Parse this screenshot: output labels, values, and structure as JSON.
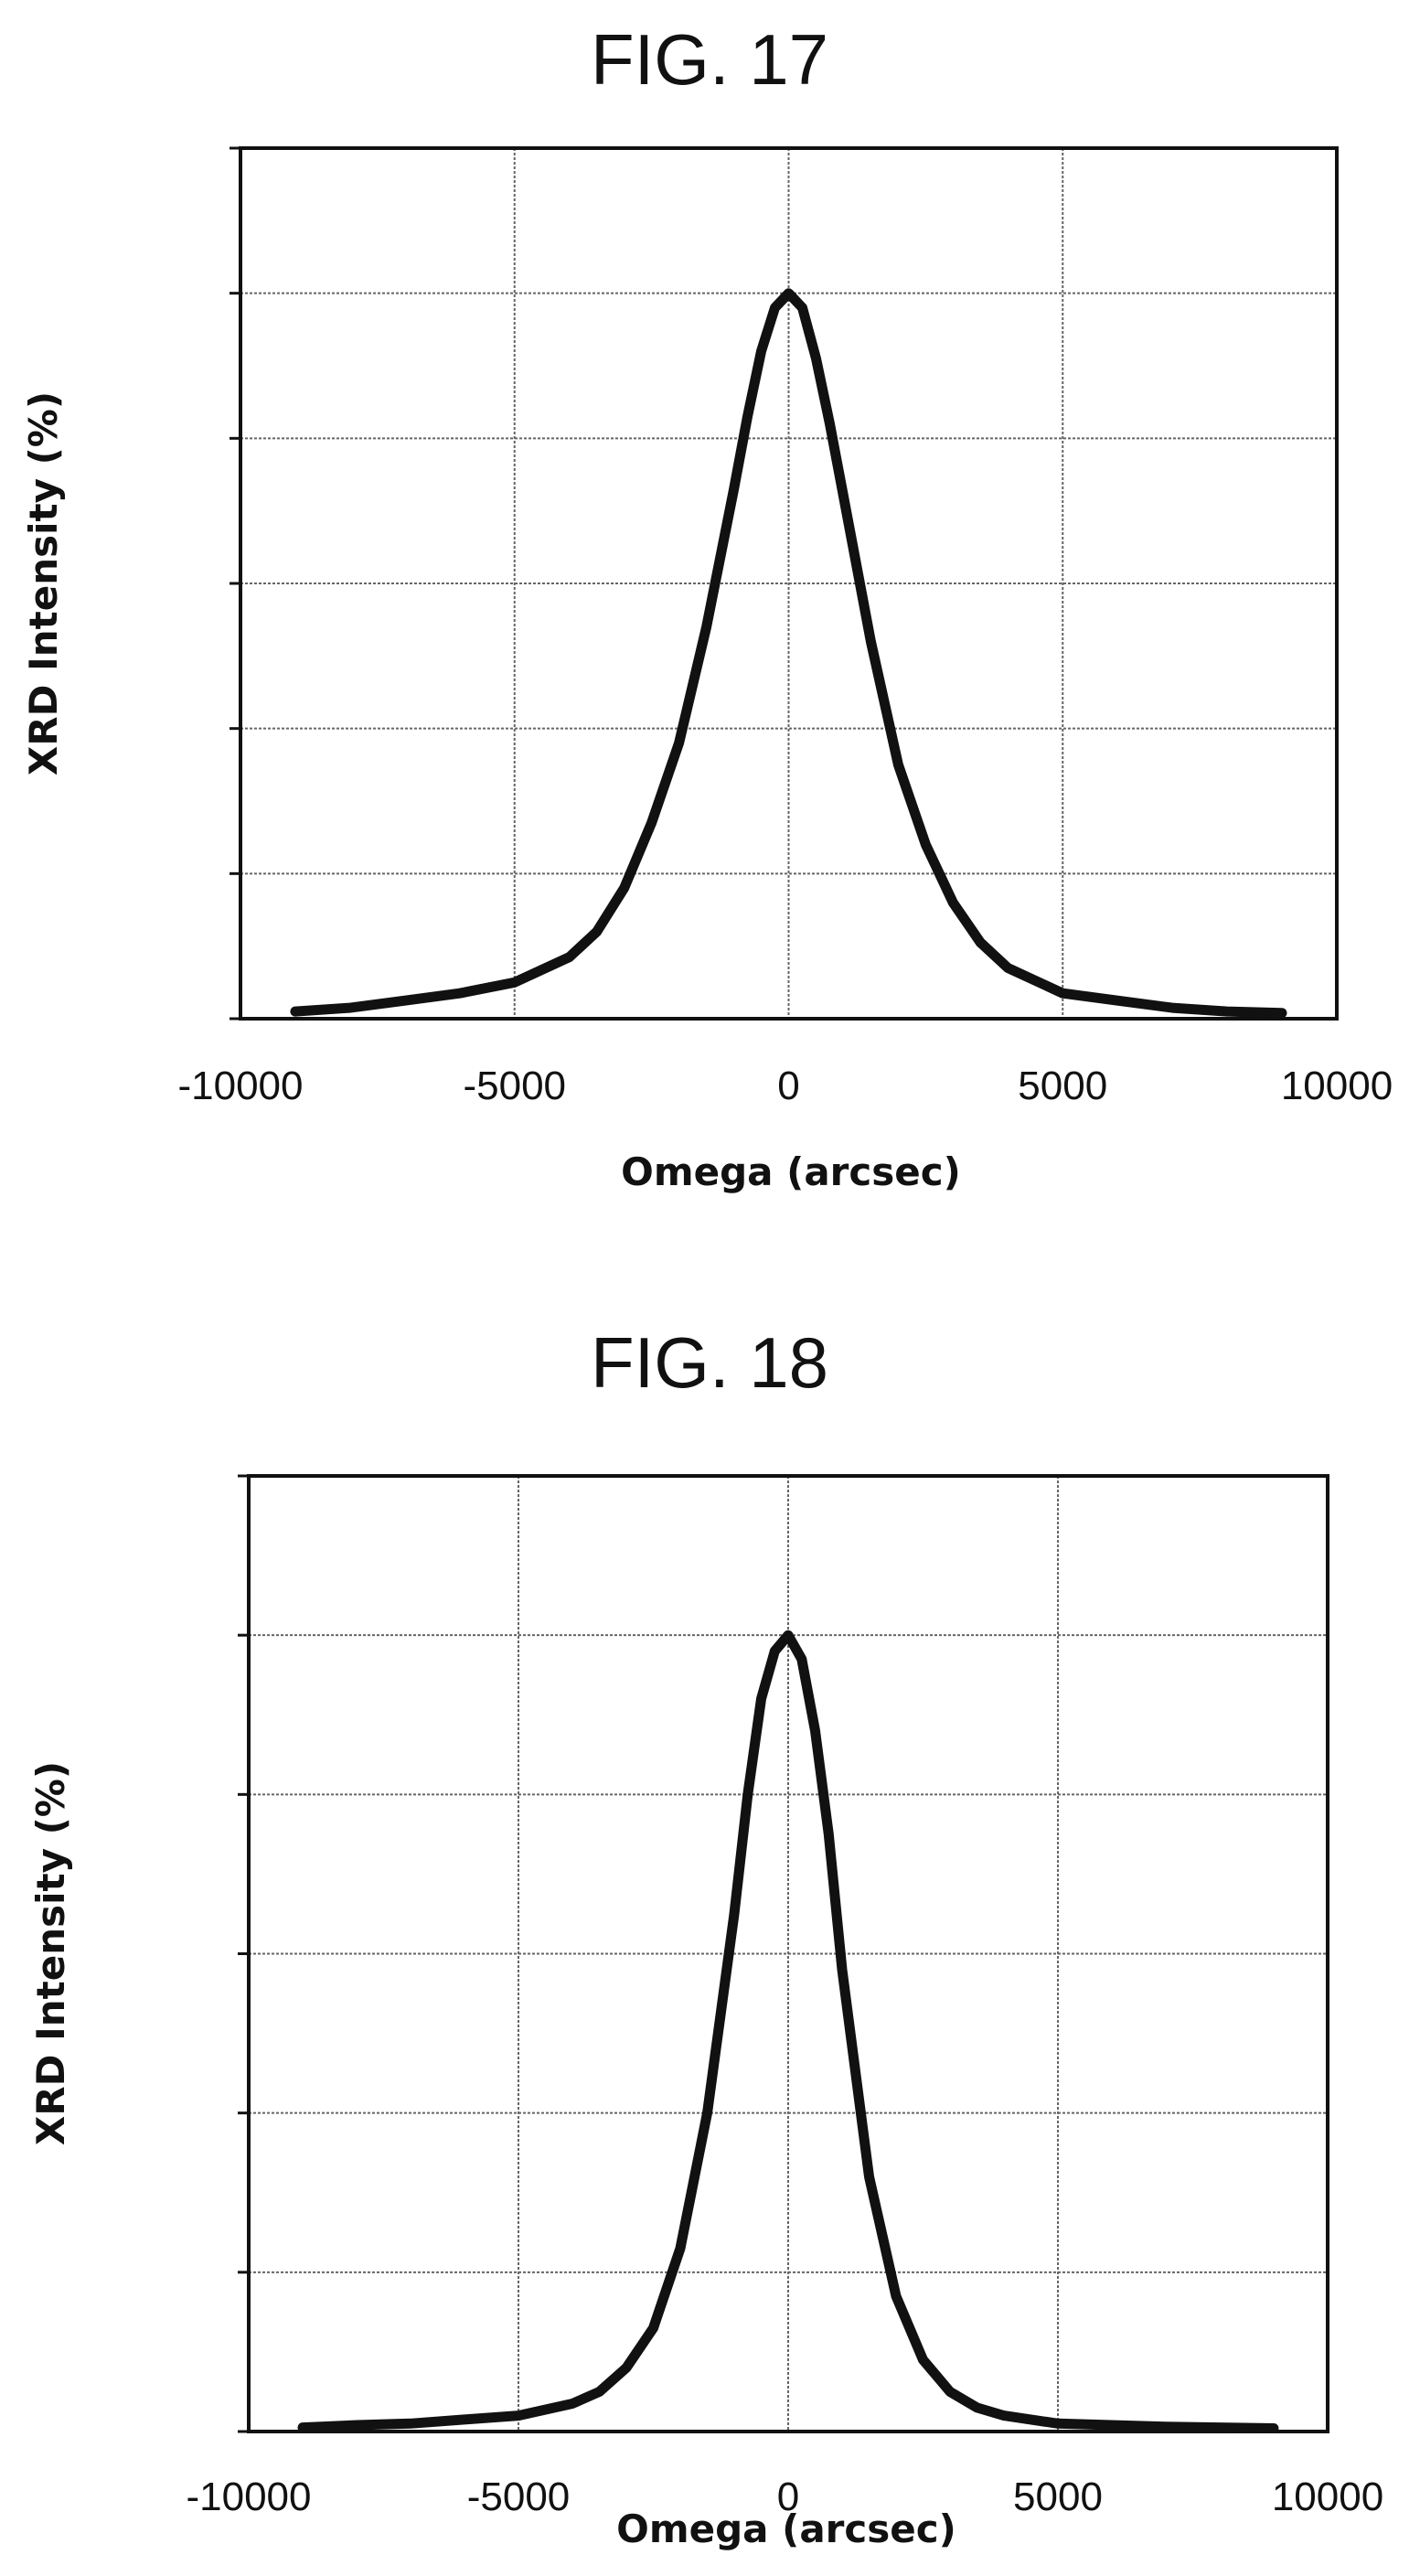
{
  "chart_data": [
    {
      "type": "line",
      "title": "FIG. 17",
      "xlabel": "Omega (arcsec)",
      "ylabel": "XRD Intensity (%)",
      "xlim": [
        -10000,
        10000
      ],
      "xticks": [
        -10000,
        -5000,
        0,
        5000,
        10000
      ],
      "xtick_labels": [
        "-10000",
        "-5000",
        "0",
        "5000",
        "10000"
      ],
      "ylim": [
        0,
        120
      ],
      "ytick_count": 6,
      "grid": true,
      "series": [
        {
          "x": [
            -9000,
            -8000,
            -7000,
            -6000,
            -5000,
            -4000,
            -3500,
            -3000,
            -2500,
            -2000,
            -1500,
            -1000,
            -750,
            -500,
            -250,
            0,
            250,
            500,
            750,
            1000,
            1500,
            2000,
            2500,
            3000,
            3500,
            4000,
            5000,
            6000,
            7000,
            8000,
            9000
          ],
          "y": [
            1.0,
            1.5,
            2.5,
            3.5,
            5.0,
            8.5,
            12.0,
            18.0,
            27.0,
            38.0,
            54.0,
            73.0,
            83.0,
            92.0,
            98.0,
            100.0,
            98.0,
            91.0,
            82.0,
            72.0,
            52.0,
            35.0,
            24.0,
            16.0,
            10.5,
            7.0,
            3.5,
            2.5,
            1.5,
            1.0,
            0.8
          ]
        }
      ]
    },
    {
      "type": "line",
      "title": "FIG. 18",
      "xlabel": "Omega (arcsec)",
      "ylabel": "XRD Intensity (%)",
      "xlim": [
        -10000,
        10000
      ],
      "xticks": [
        -10000,
        -5000,
        0,
        5000,
        10000
      ],
      "xtick_labels": [
        "-10000",
        "-5000",
        "0",
        "5000",
        "10000"
      ],
      "ylim": [
        0,
        120
      ],
      "ytick_count": 6,
      "grid": true,
      "series": [
        {
          "x": [
            -9000,
            -8000,
            -7000,
            -6000,
            -5000,
            -4000,
            -3500,
            -3000,
            -2500,
            -2000,
            -1500,
            -1000,
            -750,
            -500,
            -250,
            0,
            250,
            500,
            750,
            1000,
            1500,
            2000,
            2500,
            3000,
            3500,
            4000,
            5000,
            6000,
            7000,
            8000,
            9000
          ],
          "y": [
            0.5,
            0.8,
            1.0,
            1.5,
            2.0,
            3.5,
            5.0,
            8.0,
            13.0,
            23.0,
            40.0,
            65.0,
            80.0,
            92.0,
            98.0,
            100.0,
            97.0,
            88.0,
            75.0,
            58.0,
            32.0,
            17.0,
            9.0,
            5.0,
            3.0,
            2.0,
            1.0,
            0.8,
            0.6,
            0.5,
            0.4
          ]
        }
      ]
    }
  ]
}
